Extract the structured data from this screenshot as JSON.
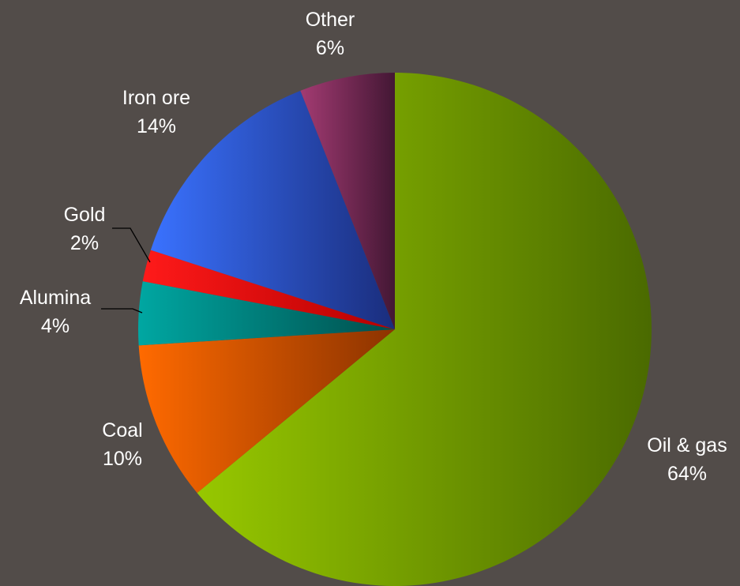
{
  "chart_data": {
    "type": "pie",
    "title": "",
    "start_angle_deg": 0,
    "direction": "clockwise",
    "legend": "none",
    "slices": [
      {
        "name": "Oil & gas",
        "value": 64,
        "label": "64%",
        "color_light": "#97c800",
        "color_dark": "#4a6a00"
      },
      {
        "name": "Coal",
        "value": 10,
        "label": "10%",
        "color_light": "#ff6a00",
        "color_dark": "#8c3300"
      },
      {
        "name": "Alumina",
        "value": 4,
        "label": "4%",
        "color_light": "#00a7a2",
        "color_dark": "#004e4c"
      },
      {
        "name": "Gold",
        "value": 2,
        "label": "2%",
        "color_light": "#ff1a1a",
        "color_dark": "#b40000"
      },
      {
        "name": "Iron ore",
        "value": 14,
        "label": "14%",
        "color_light": "#3a72ff",
        "color_dark": "#1a2d7c"
      },
      {
        "name": "Other",
        "value": 6,
        "label": "6%",
        "color_light": "#a33b72",
        "color_dark": "#431734"
      }
    ]
  }
}
